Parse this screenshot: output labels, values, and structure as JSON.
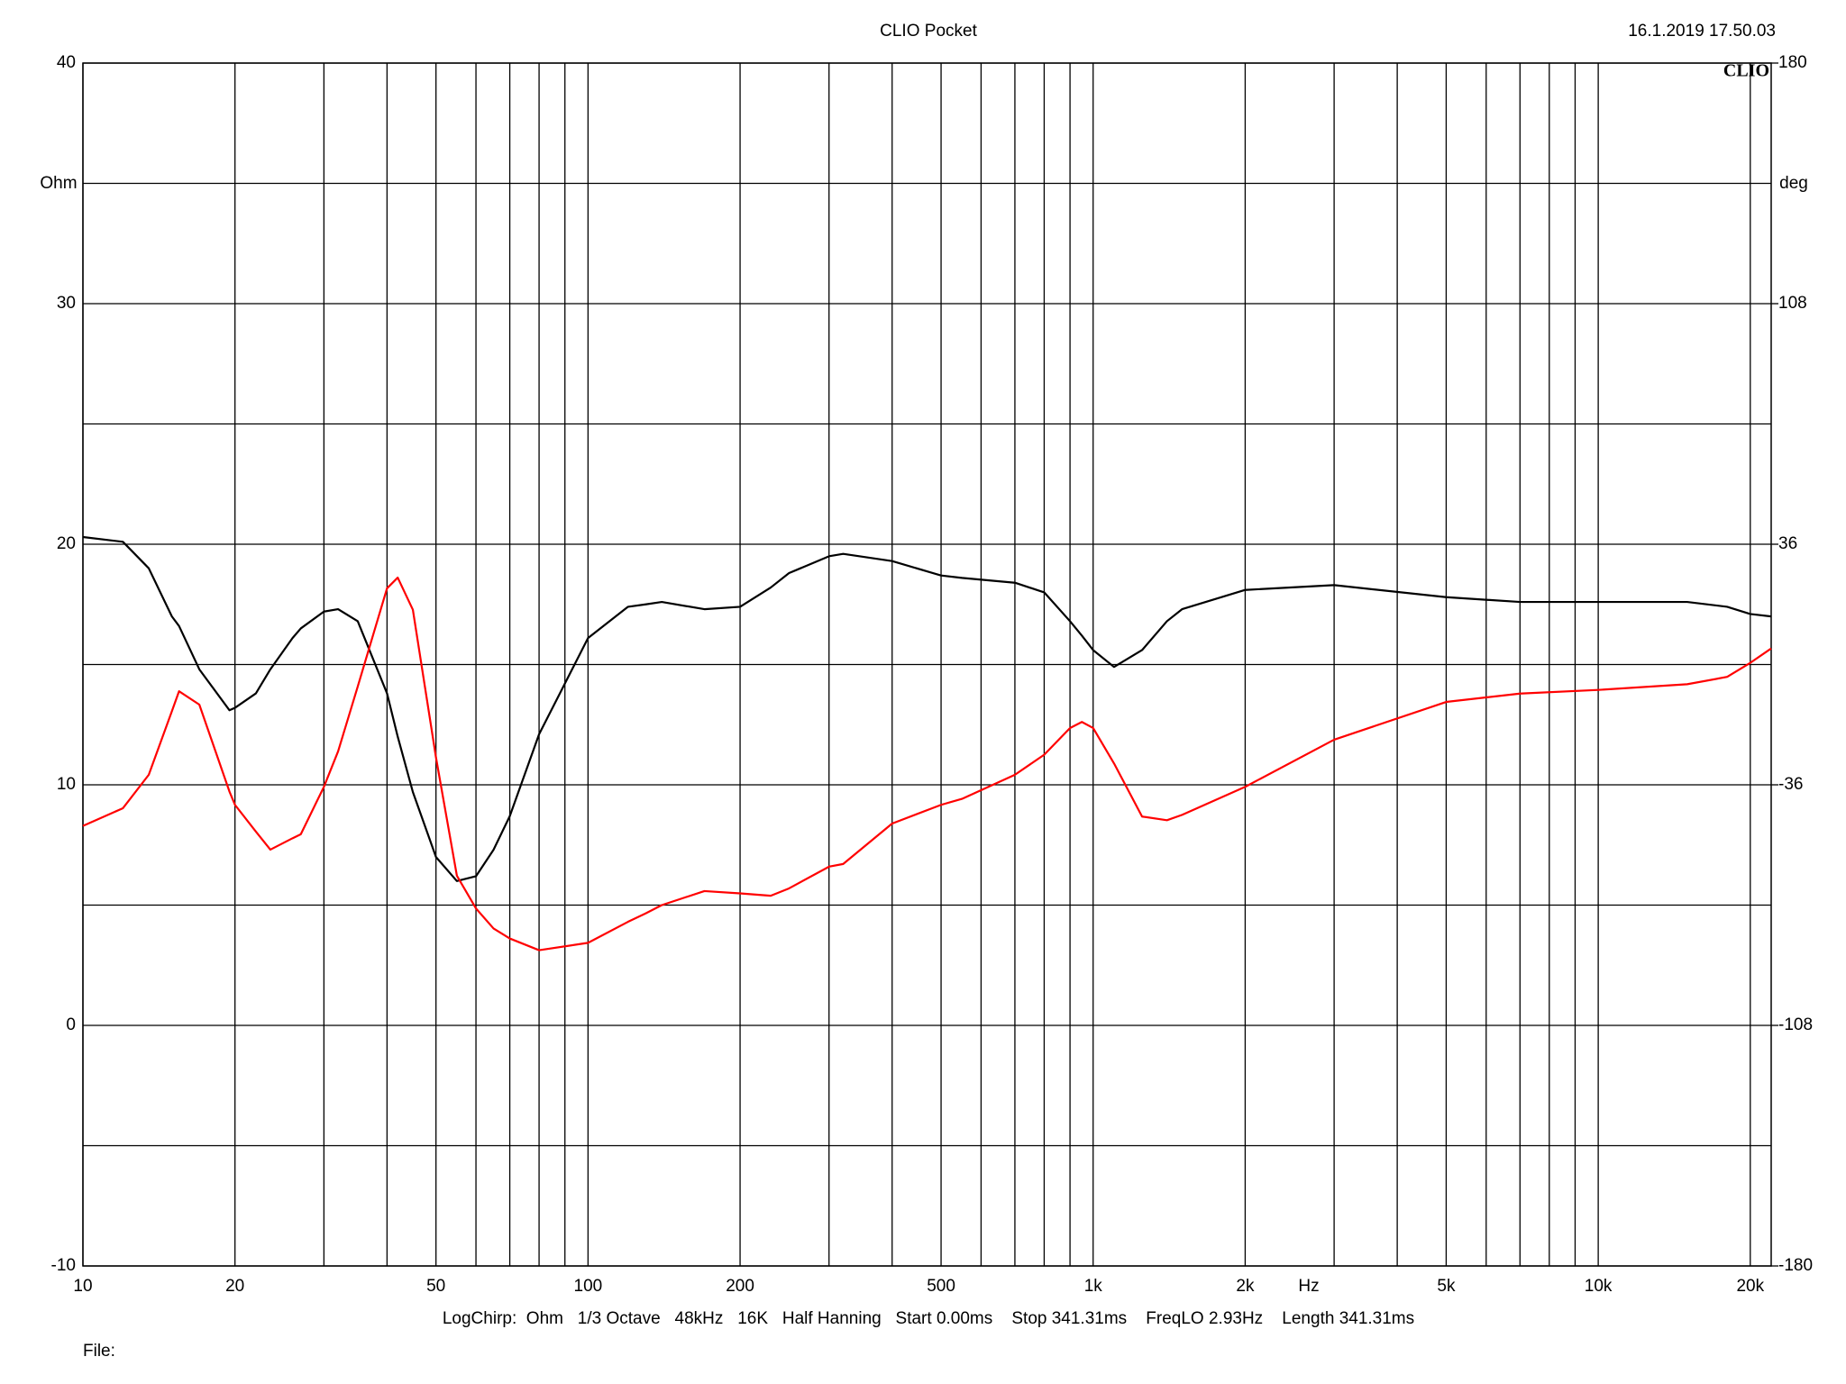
{
  "chart_data": {
    "type": "line",
    "title": "CLIO Pocket",
    "timestamp": "16.1.2019 17.50.03",
    "logo": "CLIO",
    "ylabel": "Ohm",
    "y2label": "deg",
    "xlabel": "Hz",
    "footer": "LogChirp:  Ohm   1/3 Octave   48kHz   16K   Half Hanning   Start 0.00ms    Stop 341.31ms    FreqLO 2.93Hz    Length 341.31ms",
    "file_label": "File:",
    "xscale": "log",
    "grid": true,
    "x": [
      10,
      12,
      13.5,
      15,
      15.5,
      17,
      19.5,
      20,
      22,
      23.5,
      26,
      27,
      30,
      32,
      35,
      40,
      42,
      45,
      50,
      55,
      60,
      65,
      70,
      80,
      100,
      120,
      130,
      140,
      170,
      200,
      230,
      250,
      300,
      320,
      400,
      500,
      550,
      700,
      800,
      900,
      950,
      1000,
      1100,
      1250,
      1400,
      1500,
      2000,
      3000,
      5000,
      7000,
      10000,
      15000,
      18000,
      20000,
      22000
    ],
    "series": [
      {
        "color": "#000000",
        "values": [
          20.3,
          20.1,
          19.0,
          17.0,
          16.6,
          14.8,
          13.1,
          13.2,
          13.8,
          14.8,
          16.1,
          16.5,
          17.2,
          17.3,
          16.8,
          13.8,
          12.0,
          9.7,
          7.0,
          6.0,
          6.2,
          7.3,
          8.7,
          12.1,
          16.1,
          17.4,
          17.5,
          17.6,
          17.3,
          17.4,
          18.2,
          18.8,
          19.5,
          19.6,
          19.3,
          18.7,
          18.6,
          18.4,
          18.0,
          16.8,
          16.2,
          15.6,
          14.9,
          15.6,
          16.8,
          17.3,
          18.1,
          18.3,
          17.8,
          17.6,
          17.6,
          17.6,
          17.4,
          17.1,
          17.0
        ]
      },
      {
        "color": "#ff0000",
        "axis": "y2",
        "values": [
          -48.3,
          -43,
          -33,
          -14,
          -8,
          -12,
          -38,
          -42,
          -50,
          -55.4,
          -52,
          -50.8,
          -36.6,
          -26,
          -6.6,
          22.8,
          26,
          16.4,
          -27.8,
          -63.2,
          -73,
          -79,
          -82,
          -85.5,
          -83.3,
          -77,
          -74.5,
          -72,
          -67.8,
          -68.5,
          -69.2,
          -67,
          -60.5,
          -59.7,
          -47.6,
          -42,
          -40.2,
          -33,
          -27,
          -19,
          -17.2,
          -19,
          -29.6,
          -45.5,
          -46.6,
          -45,
          -36.6,
          -22.5,
          -11.2,
          -8.7,
          -7.6,
          -5.9,
          -3.7,
          0.5,
          4.8
        ]
      }
    ],
    "xlim": [
      10,
      22000
    ],
    "xticks": [
      10,
      20,
      50,
      100,
      200,
      500,
      {
        "value": 1000,
        "label": "1k"
      },
      {
        "value": 2000,
        "label": "2k"
      },
      {
        "value": 5000,
        "label": "5k"
      },
      {
        "value": 10000,
        "label": "10k"
      },
      {
        "value": 20000,
        "label": "20k"
      }
    ],
    "xgrid": [
      30,
      40,
      60,
      70,
      80,
      90,
      300,
      400,
      600,
      700,
      800,
      900,
      3000,
      4000,
      6000,
      7000,
      8000,
      9000
    ],
    "ylim": [
      -10,
      40
    ],
    "yticks": [
      -10,
      0,
      10,
      20,
      30,
      40
    ],
    "ygrid": [
      -5,
      5,
      15,
      25,
      35
    ],
    "y2lim": [
      -180,
      180
    ],
    "y2ticks": [
      -180,
      -108,
      -36,
      36,
      108,
      180
    ]
  }
}
